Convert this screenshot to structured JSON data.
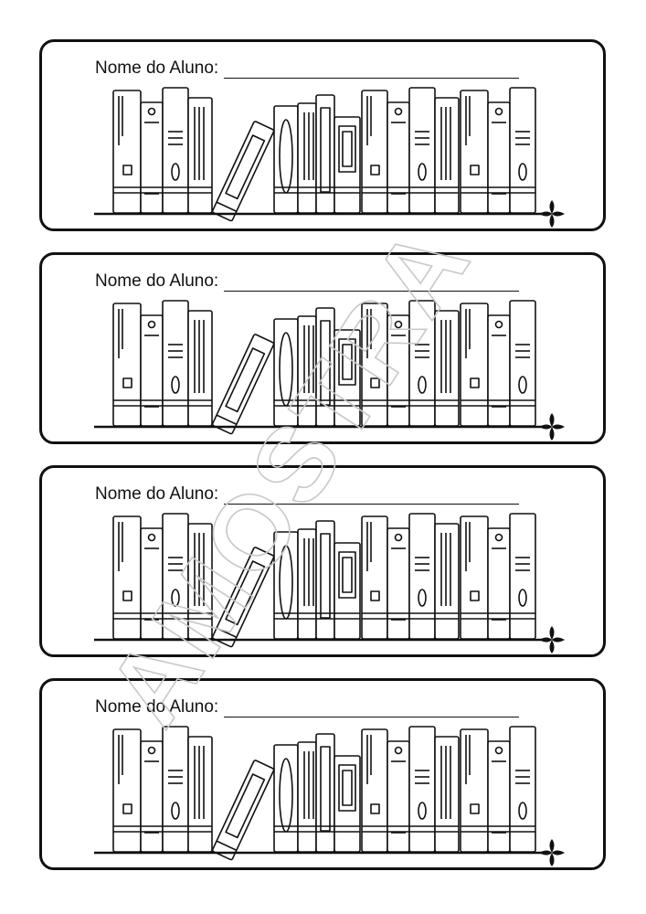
{
  "cards": [
    {
      "label": "Nome do Aluno:"
    },
    {
      "label": "Nome do Aluno:"
    },
    {
      "label": "Nome do Aluno:"
    },
    {
      "label": "Nome do Aluno:"
    }
  ],
  "watermark": {
    "text": "AMOSTRA"
  },
  "icons": {
    "sparkle": "four-point-star-icon",
    "books": "bookshelf-icon"
  }
}
